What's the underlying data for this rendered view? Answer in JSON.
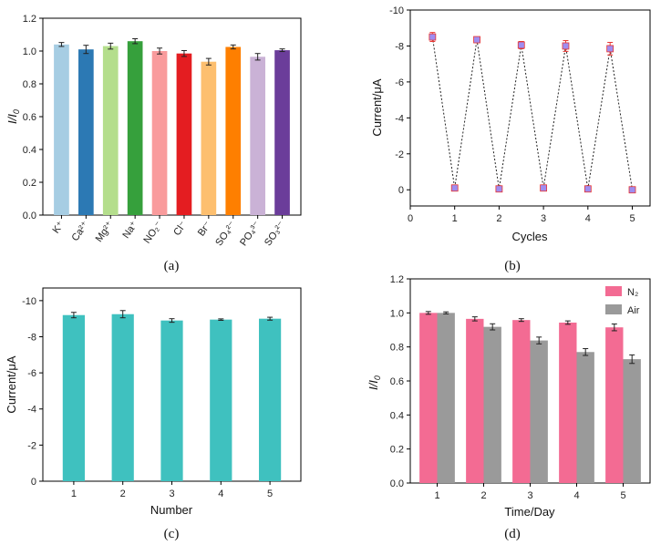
{
  "chart_data": [
    {
      "panel": "(a)",
      "type": "bar",
      "ylabel": "I/I0",
      "ylim": [
        0.0,
        1.2
      ],
      "yticks": [
        "0.0",
        "0.2",
        "0.4",
        "0.6",
        "0.8",
        "1.0",
        "1.2"
      ],
      "yticks_vals": [
        0.0,
        0.2,
        0.4,
        0.6,
        0.8,
        1.0,
        1.2
      ],
      "categories": [
        "K⁺",
        "Ca²⁺",
        "Mg²⁺",
        "Na⁺",
        "NO₂⁻",
        "Cl⁻",
        "Br⁻",
        "SO₄²⁻",
        "PO₄³⁻",
        "SO₃²⁻"
      ],
      "values": [
        1.04,
        1.01,
        1.03,
        1.06,
        1.0,
        0.985,
        0.935,
        1.025,
        0.965,
        1.005
      ],
      "errors": [
        0.012,
        0.025,
        0.018,
        0.015,
        0.018,
        0.018,
        0.02,
        0.012,
        0.02,
        0.008
      ],
      "colors": [
        "#a6cde3",
        "#2c79b4",
        "#b4de8c",
        "#36a03c",
        "#f99b9c",
        "#e41d21",
        "#fdbf6f",
        "#fe7f00",
        "#cab2d6",
        "#6b3d9a"
      ]
    },
    {
      "panel": "(b)",
      "type": "scatter",
      "xlabel": "Cycles",
      "ylabel": "Current/μA",
      "xlim": [
        0,
        5.4
      ],
      "ylim": [
        0.9,
        -10.0
      ],
      "xticks": [
        "0",
        "1",
        "2",
        "3",
        "4",
        "5"
      ],
      "xticks_vals": [
        0,
        1,
        2,
        3,
        4,
        5
      ],
      "yticks": [
        "-10",
        "-8",
        "-6",
        "-4",
        "-2",
        "0"
      ],
      "yticks_vals": [
        -10,
        -8,
        -6,
        -4,
        -2,
        0
      ],
      "x": [
        0.5,
        1,
        1.5,
        2,
        2.5,
        3,
        3.5,
        4,
        4.5,
        5
      ],
      "y": [
        -8.5,
        -0.1,
        -8.35,
        -0.05,
        -8.05,
        -0.1,
        -8.0,
        -0.05,
        -7.85,
        0.0
      ],
      "errors": [
        0.25,
        0.05,
        0.1,
        0.05,
        0.2,
        0.05,
        0.3,
        0.05,
        0.35,
        0.05
      ],
      "marker_color": "#9f8df0",
      "error_color": "#e8332f"
    },
    {
      "panel": "(c)",
      "type": "bar",
      "xlabel": "Number",
      "ylabel": "Current/μA",
      "ylim": [
        0,
        -10.7
      ],
      "categories": [
        "1",
        "2",
        "3",
        "4",
        "5"
      ],
      "yticks": [
        "0",
        "-2",
        "-4",
        "-6",
        "-8",
        "-10"
      ],
      "yticks_vals": [
        0,
        -2,
        -4,
        -6,
        -8,
        -10
      ],
      "values": [
        -9.2,
        -9.25,
        -8.9,
        -8.95,
        -9.0
      ],
      "errors": [
        0.15,
        0.2,
        0.1,
        0.04,
        0.08
      ],
      "color": "#3fc1bf"
    },
    {
      "panel": "(d)",
      "type": "bar",
      "xlabel": "Time/Day",
      "ylabel": "I/I0",
      "ylim": [
        0.0,
        1.2
      ],
      "categories": [
        "1",
        "2",
        "3",
        "4",
        "5"
      ],
      "yticks": [
        "0.0",
        "0.2",
        "0.4",
        "0.6",
        "0.8",
        "1.0",
        "1.2"
      ],
      "yticks_vals": [
        0.0,
        0.2,
        0.4,
        0.6,
        0.8,
        1.0,
        1.2
      ],
      "series": [
        {
          "name": "N₂",
          "color": "#f36b93",
          "values": [
            1.0,
            0.965,
            0.958,
            0.943,
            0.915
          ],
          "errors": [
            0.008,
            0.012,
            0.008,
            0.01,
            0.02
          ]
        },
        {
          "name": "Air",
          "color": "#9a9a9a",
          "values": [
            1.0,
            0.918,
            0.838,
            0.77,
            0.728
          ],
          "errors": [
            0.006,
            0.018,
            0.02,
            0.02,
            0.025
          ]
        }
      ],
      "legend": "top-right"
    }
  ]
}
